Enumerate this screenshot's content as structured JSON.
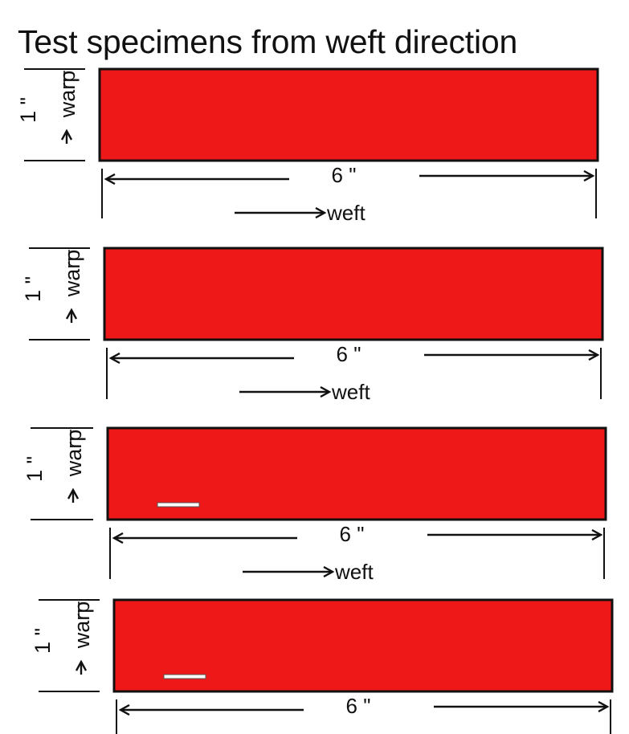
{
  "title": "Test specimens from weft direction",
  "labels": {
    "width_dimension": "1 \"",
    "length_dimension": "6 \"",
    "warp_direction": "warp",
    "weft_direction": "weft"
  },
  "colors": {
    "specimen_fill": "#ee1818",
    "line": "#111111",
    "background": "#ffffff"
  },
  "specimens": [
    {
      "id": "specimen-1",
      "width": "1 \"",
      "length": "6 \"",
      "warp_label": "warp",
      "weft_label": "weft"
    },
    {
      "id": "specimen-2",
      "width": "1 \"",
      "length": "6 \"",
      "warp_label": "warp",
      "weft_label": "weft"
    },
    {
      "id": "specimen-3",
      "width": "1 \"",
      "length": "6 \"",
      "warp_label": "warp",
      "weft_label": "weft"
    },
    {
      "id": "specimen-4",
      "width": "1 \"",
      "length": "6 \"",
      "warp_label": "warp"
    }
  ]
}
